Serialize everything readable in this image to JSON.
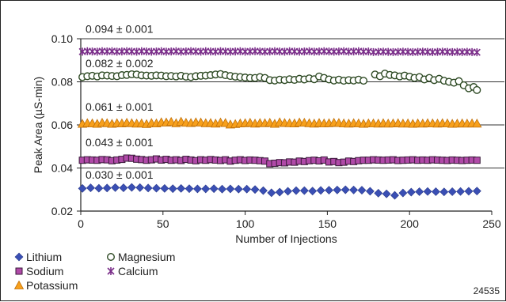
{
  "chart_data": {
    "type": "scatter",
    "title": "",
    "xlabel": "Number of Injections",
    "ylabel": "Peak Area (µS-min)",
    "xlim": [
      0,
      250
    ],
    "ylim": [
      0.02,
      0.1
    ],
    "xticks": [
      "0",
      "50",
      "100",
      "150",
      "200",
      "250"
    ],
    "yticks": [
      "0.02",
      "0.04",
      "0.06",
      "0.08",
      "0.10"
    ],
    "grid": "horizontal",
    "legend_position": "bottom-left",
    "figure_id": "24535",
    "annotations": [
      "0.094 ± 0.001",
      "0.082 ± 0.002",
      "0.061 ± 0.001",
      "0.043 ± 0.001",
      "0.030 ± 0.001"
    ],
    "series": [
      {
        "name": "Lithium",
        "marker": "diamond",
        "color": "#3a4fb4",
        "x": [
          1,
          6,
          11,
          16,
          21,
          26,
          31,
          36,
          41,
          46,
          51,
          56,
          61,
          66,
          71,
          76,
          81,
          86,
          91,
          96,
          101,
          106,
          111,
          116,
          121,
          126,
          131,
          136,
          141,
          146,
          151,
          156,
          161,
          166,
          171,
          176,
          181,
          186,
          191,
          196,
          201,
          206,
          211,
          216,
          221,
          226,
          231,
          236,
          241
        ],
        "y": [
          0.0305,
          0.0308,
          0.0306,
          0.0307,
          0.0309,
          0.0308,
          0.031,
          0.0309,
          0.0307,
          0.0306,
          0.0305,
          0.0304,
          0.0305,
          0.0304,
          0.0303,
          0.0303,
          0.0304,
          0.0302,
          0.0303,
          0.0302,
          0.0302,
          0.03,
          0.0295,
          0.0285,
          0.0288,
          0.0292,
          0.0295,
          0.0295,
          0.0293,
          0.0296,
          0.0297,
          0.0298,
          0.0299,
          0.0298,
          0.0297,
          0.0292,
          0.0283,
          0.028,
          0.0273,
          0.0284,
          0.0288,
          0.029,
          0.0291,
          0.029,
          0.0289,
          0.029,
          0.0291,
          0.0292,
          0.0293
        ],
        "x_fine": [
          0,
          1,
          2,
          3,
          4,
          5,
          6,
          7,
          8,
          9,
          10,
          11,
          12,
          13,
          14,
          15,
          16,
          17,
          18,
          19,
          20,
          21,
          22,
          23,
          24,
          25,
          26,
          27,
          28,
          29,
          30,
          31,
          32,
          33,
          34,
          35,
          36,
          37,
          38,
          39,
          40,
          41,
          42,
          43,
          44,
          45,
          46,
          47,
          48,
          49,
          50,
          51,
          52,
          53,
          54,
          55,
          56,
          57,
          58,
          59,
          60,
          61,
          62,
          63,
          64,
          65,
          66,
          67,
          68,
          69,
          70,
          71,
          72,
          73,
          74,
          75,
          76,
          77,
          78,
          79,
          80,
          81,
          82,
          83,
          84,
          85,
          86,
          87,
          88,
          89,
          90,
          91,
          92,
          93,
          94,
          95,
          96,
          97,
          98,
          99,
          100,
          101,
          102,
          103,
          104,
          105,
          106,
          107,
          108,
          109,
          110,
          111,
          112,
          113,
          114,
          115,
          116,
          117,
          118,
          119,
          120,
          121,
          122,
          123,
          124,
          125,
          126,
          127,
          128,
          129,
          130,
          131,
          132,
          133,
          134,
          135,
          136,
          137,
          138,
          139,
          140,
          141,
          142,
          143,
          144,
          145,
          146,
          147,
          148,
          149,
          150,
          151,
          152,
          153,
          154,
          155,
          156,
          157,
          158,
          159,
          160,
          161,
          162,
          163,
          164,
          165,
          166,
          167,
          168,
          169,
          170,
          171,
          172,
          173,
          174,
          175,
          176,
          177,
          178,
          179,
          180,
          181,
          182,
          183,
          184,
          185,
          186,
          187,
          188,
          189,
          190,
          191,
          192,
          193,
          194,
          195,
          196,
          197,
          198,
          199,
          200,
          201,
          202,
          203,
          204,
          205,
          206,
          207,
          208,
          209,
          210,
          211,
          212,
          213,
          214,
          215,
          216,
          217,
          218,
          219,
          220,
          221,
          222,
          223,
          224,
          225,
          226,
          227,
          228,
          229,
          230,
          231,
          232,
          233,
          234,
          235,
          236,
          237,
          238,
          239,
          240,
          241
        ]
      },
      {
        "name": "Magnesium",
        "marker": "open-circle",
        "color": "#2e4a24",
        "x": [
          1,
          4,
          7,
          10,
          13,
          16,
          19,
          22,
          25,
          28,
          31,
          34,
          37,
          40,
          43,
          46,
          49,
          52,
          55,
          58,
          61,
          64,
          67,
          70,
          73,
          76,
          79,
          82,
          85,
          88,
          91,
          94,
          97,
          100,
          103,
          106,
          109,
          112,
          115,
          118,
          121,
          124,
          127,
          130,
          133,
          136,
          139,
          142,
          145,
          148,
          151,
          154,
          157,
          160,
          163,
          166,
          169,
          172,
          179,
          182,
          185,
          188,
          191,
          194,
          197,
          200,
          203,
          206,
          209,
          212,
          215,
          218,
          221,
          224,
          227,
          230,
          233,
          236,
          239,
          241
        ],
        "y": [
          0.0822,
          0.0826,
          0.0828,
          0.0825,
          0.083,
          0.0829,
          0.0827,
          0.0826,
          0.0831,
          0.0832,
          0.0835,
          0.0834,
          0.083,
          0.0829,
          0.0828,
          0.083,
          0.0829,
          0.0826,
          0.0827,
          0.0825,
          0.0828,
          0.0824,
          0.0822,
          0.0826,
          0.0828,
          0.0829,
          0.0831,
          0.0834,
          0.0836,
          0.0831,
          0.0827,
          0.0824,
          0.0822,
          0.082,
          0.0818,
          0.0818,
          0.0822,
          0.0818,
          0.0808,
          0.0806,
          0.081,
          0.0808,
          0.0812,
          0.0809,
          0.0814,
          0.0811,
          0.0816,
          0.0812,
          0.0825,
          0.0818,
          0.0811,
          0.0806,
          0.081,
          0.0805,
          0.0808,
          0.0806,
          0.081,
          0.0805,
          0.0834,
          0.0826,
          0.0838,
          0.0832,
          0.083,
          0.0825,
          0.0829,
          0.0824,
          0.0818,
          0.0822,
          0.0811,
          0.0818,
          0.0808,
          0.0814,
          0.0805,
          0.08,
          0.0796,
          0.0803,
          0.0784,
          0.077,
          0.0776,
          0.0762
        ]
      },
      {
        "name": "Potassium",
        "marker": "triangle",
        "color": "#f7a01c",
        "x": [
          1,
          4,
          7,
          10,
          13,
          16,
          19,
          22,
          25,
          28,
          31,
          34,
          37,
          40,
          43,
          46,
          49,
          52,
          55,
          58,
          61,
          64,
          67,
          70,
          73,
          76,
          79,
          82,
          85,
          88,
          91,
          94,
          97,
          100,
          103,
          106,
          109,
          112,
          115,
          118,
          121,
          124,
          127,
          130,
          133,
          136,
          139,
          142,
          145,
          148,
          151,
          154,
          157,
          160,
          163,
          166,
          169,
          172,
          175,
          178,
          181,
          184,
          187,
          190,
          193,
          196,
          199,
          202,
          205,
          208,
          211,
          214,
          217,
          220,
          223,
          226,
          229,
          232,
          235,
          238,
          241
        ],
        "y": [
          0.0605,
          0.0608,
          0.0607,
          0.0605,
          0.061,
          0.0608,
          0.0605,
          0.0608,
          0.0607,
          0.061,
          0.0608,
          0.0606,
          0.0607,
          0.0604,
          0.0609,
          0.0607,
          0.0612,
          0.0611,
          0.0614,
          0.0608,
          0.0615,
          0.061,
          0.0609,
          0.0612,
          0.0611,
          0.0608,
          0.0609,
          0.0606,
          0.0611,
          0.0609,
          0.0602,
          0.0604,
          0.0607,
          0.0608,
          0.061,
          0.0606,
          0.0609,
          0.0608,
          0.061,
          0.0605,
          0.0612,
          0.0609,
          0.0608,
          0.0607,
          0.0611,
          0.061,
          0.0608,
          0.0606,
          0.0609,
          0.0607,
          0.0608,
          0.061,
          0.0609,
          0.0607,
          0.0606,
          0.0608,
          0.0607,
          0.0605,
          0.0607,
          0.0607,
          0.0606,
          0.0608,
          0.0606,
          0.0607,
          0.0608,
          0.0606,
          0.0607,
          0.0605,
          0.0607,
          0.0606,
          0.0608,
          0.0607,
          0.0606,
          0.0608,
          0.0607,
          0.0605,
          0.0606,
          0.0607,
          0.0606,
          0.0607,
          0.0606
        ]
      },
      {
        "name": "Sodium",
        "marker": "square",
        "color": "#b04aa8",
        "x": [
          1,
          4,
          7,
          10,
          13,
          16,
          19,
          22,
          25,
          28,
          31,
          34,
          37,
          40,
          43,
          46,
          49,
          52,
          55,
          58,
          61,
          64,
          67,
          70,
          73,
          76,
          79,
          82,
          85,
          88,
          91,
          94,
          97,
          100,
          103,
          106,
          109,
          112,
          115,
          118,
          121,
          124,
          127,
          130,
          133,
          136,
          139,
          142,
          145,
          148,
          151,
          154,
          157,
          160,
          163,
          166,
          169,
          172,
          175,
          178,
          181,
          184,
          187,
          190,
          193,
          196,
          199,
          202,
          205,
          208,
          211,
          214,
          217,
          220,
          223,
          226,
          229,
          232,
          235,
          238,
          241
        ],
        "y": [
          0.0436,
          0.0438,
          0.0437,
          0.0436,
          0.0439,
          0.0438,
          0.0434,
          0.0437,
          0.044,
          0.0446,
          0.0445,
          0.0441,
          0.0439,
          0.0436,
          0.0438,
          0.0442,
          0.0437,
          0.044,
          0.0436,
          0.0438,
          0.0435,
          0.044,
          0.0437,
          0.0434,
          0.0438,
          0.0436,
          0.0439,
          0.0437,
          0.0435,
          0.0438,
          0.0432,
          0.0436,
          0.0438,
          0.0435,
          0.0437,
          0.0436,
          0.0434,
          0.0432,
          0.042,
          0.0422,
          0.0425,
          0.0424,
          0.0428,
          0.0427,
          0.0432,
          0.043,
          0.0434,
          0.0436,
          0.0433,
          0.0437,
          0.0428,
          0.043,
          0.0425,
          0.0427,
          0.0432,
          0.043,
          0.0434,
          0.0436,
          0.0436,
          0.0438,
          0.0437,
          0.0436,
          0.0437,
          0.0438,
          0.0435,
          0.0436,
          0.0437,
          0.0438,
          0.0436,
          0.0437,
          0.0436,
          0.0438,
          0.0437,
          0.0436,
          0.0435,
          0.0437,
          0.0436,
          0.0435,
          0.0436,
          0.0437,
          0.0436
        ]
      },
      {
        "name": "Calcium",
        "marker": "asterisk",
        "color": "#7b2f8a",
        "x": [
          1,
          4,
          7,
          10,
          13,
          16,
          19,
          22,
          25,
          28,
          31,
          34,
          37,
          40,
          43,
          46,
          49,
          52,
          55,
          58,
          61,
          64,
          67,
          70,
          73,
          76,
          79,
          82,
          85,
          88,
          91,
          94,
          97,
          100,
          103,
          106,
          109,
          112,
          115,
          118,
          121,
          124,
          127,
          130,
          133,
          136,
          139,
          142,
          145,
          148,
          151,
          154,
          157,
          160,
          163,
          166,
          169,
          172,
          175,
          178,
          181,
          184,
          187,
          190,
          193,
          196,
          199,
          202,
          205,
          208,
          211,
          214,
          217,
          220,
          223,
          226,
          229,
          232,
          235,
          238,
          241
        ],
        "y": [
          0.094,
          0.0942,
          0.0941,
          0.094,
          0.0942,
          0.0941,
          0.0942,
          0.094,
          0.0941,
          0.0942,
          0.0941,
          0.094,
          0.0942,
          0.0941,
          0.094,
          0.0941,
          0.0942,
          0.094,
          0.0941,
          0.0942,
          0.094,
          0.0941,
          0.0942,
          0.0941,
          0.094,
          0.0942,
          0.0941,
          0.094,
          0.0942,
          0.0941,
          0.094,
          0.0941,
          0.0942,
          0.094,
          0.0941,
          0.0942,
          0.0941,
          0.094,
          0.0941,
          0.0942,
          0.0941,
          0.094,
          0.0942,
          0.0941,
          0.094,
          0.0941,
          0.0942,
          0.094,
          0.0941,
          0.0942,
          0.0941,
          0.094,
          0.0941,
          0.0942,
          0.094,
          0.0941,
          0.0942,
          0.094,
          0.0941,
          0.0938,
          0.0939,
          0.094,
          0.0939,
          0.0938,
          0.0939,
          0.094,
          0.0939,
          0.0938,
          0.0939,
          0.094,
          0.0939,
          0.0938,
          0.0939,
          0.094,
          0.0939,
          0.0938,
          0.0939,
          0.0938,
          0.0939,
          0.0938,
          0.0937
        ]
      }
    ]
  }
}
